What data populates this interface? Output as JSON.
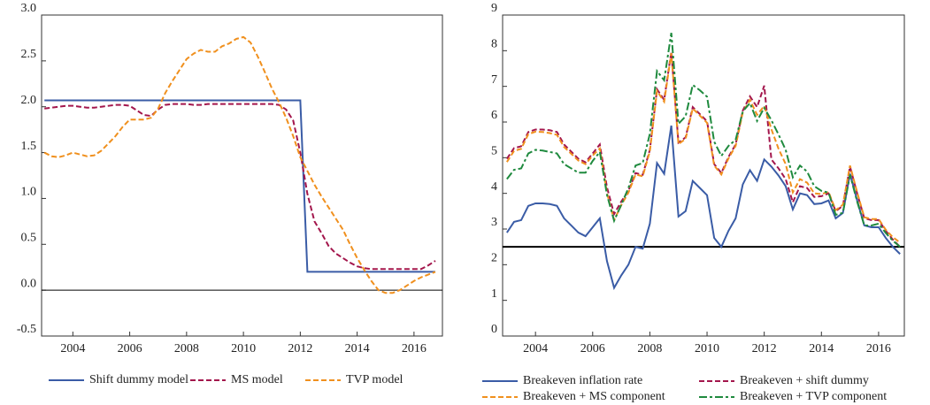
{
  "chart_data": [
    {
      "type": "line",
      "x": [
        2003,
        2003.25,
        2003.5,
        2003.75,
        2004,
        2004.25,
        2004.5,
        2004.75,
        2005,
        2005.25,
        2005.5,
        2005.75,
        2006,
        2006.25,
        2006.5,
        2006.75,
        2007,
        2007.25,
        2007.5,
        2007.75,
        2008,
        2008.25,
        2008.5,
        2008.75,
        2009,
        2009.25,
        2009.5,
        2009.75,
        2010,
        2010.25,
        2010.5,
        2010.75,
        2011,
        2011.25,
        2011.5,
        2011.75,
        2012,
        2012.25,
        2012.5,
        2012.75,
        2013,
        2013.25,
        2013.5,
        2013.75,
        2014,
        2014.25,
        2014.5,
        2014.75,
        2015,
        2015.25,
        2015.5,
        2015.75,
        2016,
        2016.25,
        2016.5,
        2016.75
      ],
      "series": [
        {
          "name": "Shift dummy model",
          "color": "#3a5ca6",
          "dash": "solid",
          "values": [
            2.07,
            2.07,
            2.07,
            2.07,
            2.07,
            2.07,
            2.07,
            2.07,
            2.07,
            2.07,
            2.07,
            2.07,
            2.07,
            2.07,
            2.07,
            2.07,
            2.07,
            2.07,
            2.07,
            2.07,
            2.07,
            2.07,
            2.07,
            2.07,
            2.07,
            2.07,
            2.07,
            2.07,
            2.07,
            2.07,
            2.07,
            2.07,
            2.07,
            2.07,
            2.07,
            2.07,
            2.07,
            0.2,
            0.2,
            0.2,
            0.2,
            0.2,
            0.2,
            0.2,
            0.2,
            0.2,
            0.2,
            0.2,
            0.2,
            0.2,
            0.2,
            0.2,
            0.2,
            0.2,
            0.2,
            0.2
          ]
        },
        {
          "name": "MS model",
          "color": "#a3164c",
          "dash": "dashed",
          "values": [
            1.98,
            1.99,
            2.0,
            2.01,
            2.01,
            2.0,
            1.99,
            1.99,
            2.0,
            2.01,
            2.02,
            2.02,
            2.01,
            1.96,
            1.91,
            1.9,
            1.97,
            2.02,
            2.03,
            2.03,
            2.03,
            2.02,
            2.02,
            2.03,
            2.03,
            2.03,
            2.03,
            2.03,
            2.03,
            2.03,
            2.03,
            2.03,
            2.03,
            2.02,
            1.97,
            1.85,
            1.5,
            1.05,
            0.75,
            0.62,
            0.48,
            0.4,
            0.35,
            0.3,
            0.26,
            0.24,
            0.23,
            0.23,
            0.23,
            0.23,
            0.23,
            0.23,
            0.23,
            0.23,
            0.27,
            0.32
          ]
        },
        {
          "name": "TVP model",
          "color": "#f0901e",
          "dash": "dashed",
          "values": [
            1.5,
            1.46,
            1.45,
            1.47,
            1.5,
            1.48,
            1.46,
            1.47,
            1.52,
            1.6,
            1.68,
            1.78,
            1.86,
            1.86,
            1.86,
            1.88,
            1.98,
            2.15,
            2.28,
            2.4,
            2.52,
            2.58,
            2.62,
            2.6,
            2.6,
            2.66,
            2.69,
            2.74,
            2.76,
            2.7,
            2.55,
            2.38,
            2.2,
            2.05,
            1.88,
            1.68,
            1.45,
            1.3,
            1.15,
            1.02,
            0.9,
            0.78,
            0.66,
            0.5,
            0.35,
            0.22,
            0.1,
            0.0,
            -0.03,
            -0.03,
            0.0,
            0.05,
            0.1,
            0.14,
            0.17,
            0.2
          ]
        }
      ],
      "xlim": [
        2002.9,
        2017.0
      ],
      "xticks": [
        2004,
        2006,
        2008,
        2010,
        2012,
        2014,
        2016
      ],
      "ylim": [
        -0.5,
        3.0
      ],
      "yticks": [
        -0.5,
        {
          "value": 0,
          "label": "0.0"
        },
        0.5,
        {
          "value": 1,
          "label": "1.0"
        },
        1.5,
        {
          "value": 2,
          "label": "2.0"
        },
        2.5,
        {
          "value": 3,
          "label": "3.0"
        }
      ],
      "reference_line": 0,
      "grid": false,
      "legend": "bottom"
    },
    {
      "type": "line",
      "x": [
        2003,
        2003.25,
        2003.5,
        2003.75,
        2004,
        2004.25,
        2004.5,
        2004.75,
        2005,
        2005.25,
        2005.5,
        2005.75,
        2006,
        2006.25,
        2006.5,
        2006.75,
        2007,
        2007.25,
        2007.5,
        2007.75,
        2008,
        2008.25,
        2008.5,
        2008.75,
        2009,
        2009.25,
        2009.5,
        2009.75,
        2010,
        2010.25,
        2010.5,
        2010.75,
        2011,
        2011.25,
        2011.5,
        2011.75,
        2012,
        2012.25,
        2012.5,
        2012.75,
        2013,
        2013.25,
        2013.5,
        2013.75,
        2014,
        2014.25,
        2014.5,
        2014.75,
        2015,
        2015.25,
        2015.5,
        2015.75,
        2016,
        2016.25,
        2016.5,
        2016.75
      ],
      "series": [
        {
          "name": "Breakeven inflation rate",
          "color": "#3a5ca6",
          "dash": "solid",
          "values": [
            2.9,
            3.2,
            3.25,
            3.65,
            3.72,
            3.72,
            3.7,
            3.65,
            3.3,
            3.1,
            2.9,
            2.8,
            3.05,
            3.3,
            2.1,
            1.35,
            1.7,
            2.0,
            2.5,
            2.45,
            3.15,
            4.85,
            4.55,
            5.9,
            3.35,
            3.5,
            4.35,
            4.15,
            3.95,
            2.75,
            2.5,
            2.95,
            3.3,
            4.25,
            4.65,
            4.35,
            4.95,
            4.75,
            4.5,
            4.2,
            3.55,
            4.0,
            3.95,
            3.7,
            3.72,
            3.8,
            3.3,
            3.45,
            4.55,
            3.8,
            3.1,
            3.05,
            3.05,
            2.75,
            2.5,
            2.3
          ]
        },
        {
          "name": "Breakeven + shift dummy",
          "color": "#a3164c",
          "dash": "dashed",
          "values": [
            4.97,
            5.27,
            5.32,
            5.72,
            5.79,
            5.79,
            5.77,
            5.72,
            5.37,
            5.17,
            4.97,
            4.87,
            5.12,
            5.37,
            4.17,
            3.42,
            3.77,
            4.07,
            4.57,
            4.52,
            5.22,
            6.92,
            6.62,
            7.97,
            5.42,
            5.57,
            6.42,
            6.22,
            6.02,
            4.82,
            4.57,
            5.02,
            5.37,
            6.32,
            6.72,
            6.42,
            7.02,
            4.95,
            4.7,
            4.4,
            3.75,
            4.2,
            4.15,
            3.9,
            3.92,
            4.0,
            3.5,
            3.65,
            4.75,
            4.0,
            3.3,
            3.25,
            3.25,
            2.95,
            2.7,
            2.5
          ]
        },
        {
          "name": "Breakeven + MS component",
          "color": "#f0901e",
          "dash": "dashed",
          "values": [
            4.88,
            5.19,
            5.25,
            5.66,
            5.73,
            5.72,
            5.69,
            5.64,
            5.3,
            5.11,
            4.92,
            4.82,
            5.06,
            5.26,
            4.01,
            3.25,
            3.67,
            4.02,
            4.53,
            4.48,
            5.18,
            6.87,
            6.57,
            7.93,
            5.38,
            5.53,
            6.38,
            6.18,
            5.98,
            4.78,
            4.53,
            4.98,
            5.33,
            6.27,
            6.62,
            6.2,
            6.45,
            5.8,
            5.25,
            4.82,
            4.03,
            4.4,
            4.3,
            4.0,
            3.98,
            4.04,
            3.53,
            3.68,
            4.78,
            4.03,
            3.33,
            3.28,
            3.28,
            2.98,
            2.77,
            2.62
          ]
        },
        {
          "name": "Breakeven + TVP component",
          "color": "#1f8a3e",
          "dash": "dashdot",
          "values": [
            4.4,
            4.66,
            4.7,
            5.12,
            5.22,
            5.2,
            5.16,
            5.12,
            4.82,
            4.7,
            4.58,
            4.58,
            4.91,
            5.16,
            3.96,
            3.23,
            3.68,
            4.15,
            4.78,
            4.85,
            5.67,
            7.43,
            7.17,
            8.5,
            5.95,
            6.16,
            7.04,
            6.89,
            6.71,
            5.45,
            5.05,
            5.33,
            5.5,
            6.3,
            6.53,
            6.03,
            6.4,
            6.05,
            5.65,
            5.22,
            4.45,
            4.78,
            4.61,
            4.2,
            4.07,
            4.02,
            3.4,
            3.45,
            4.52,
            3.77,
            3.1,
            3.1,
            3.15,
            2.89,
            2.67,
            2.5
          ]
        }
      ],
      "xlim": [
        2002.85,
        2016.9
      ],
      "xticks": [
        2004,
        2006,
        2008,
        2010,
        2012,
        2014,
        2016
      ],
      "ylim": [
        0,
        9
      ],
      "yticks": [
        0,
        1,
        2,
        3,
        4,
        5,
        6,
        7,
        8,
        9
      ],
      "reference_line": 2.5,
      "grid": false,
      "legend": "bottom"
    }
  ]
}
